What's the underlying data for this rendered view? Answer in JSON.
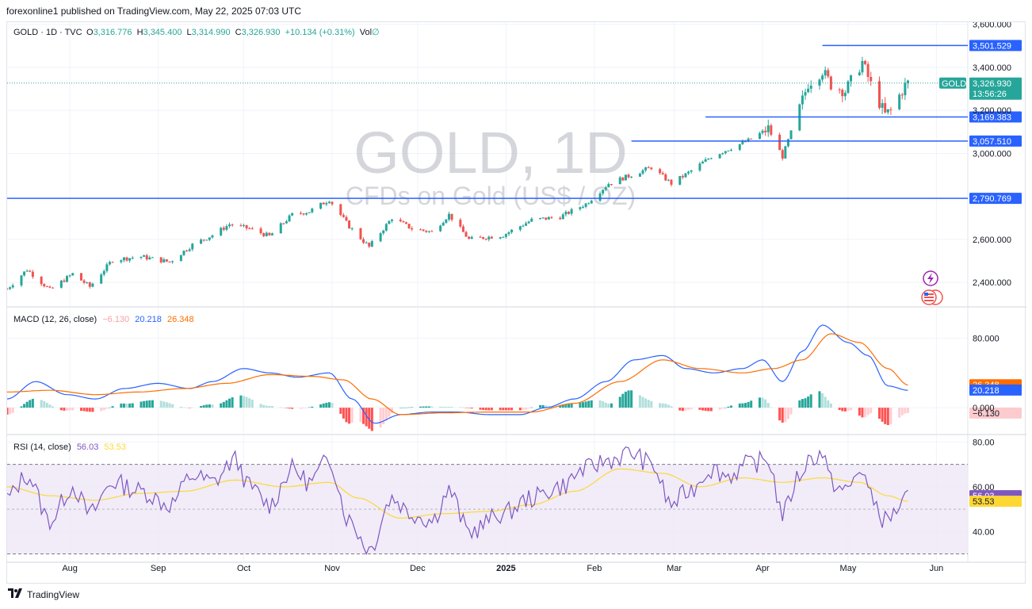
{
  "header": {
    "published_line": "forexonline1 published on TradingView.com, May 22, 2025 07:03 UTC"
  },
  "footer": {
    "logo_icon": "tradingview-logo-icon",
    "brand": "TradingView"
  },
  "colors": {
    "up": "#26a69a",
    "down": "#ef5350",
    "hline": "#2962ff",
    "macd_line": "#2962ff",
    "signal_line": "#ff6d00",
    "rsi_line": "#7e57c2",
    "rsi_ma": "#fdd835",
    "rsi_band": "#ede7f6"
  },
  "chart_data": [
    {
      "type": "candlestick",
      "symbol_label": "GOLD · 1D · TVC",
      "ohlc_legend": {
        "o_label": "O",
        "o": "3,316.776",
        "h_label": "H",
        "h": "3,345.400",
        "l_label": "L",
        "l": "3,314.990",
        "c_label": "C",
        "c": "3,326.930",
        "change": "+10.134 (+0.31%)",
        "vol_label": "Vol",
        "vol": "∅"
      },
      "watermark": {
        "title": "GOLD, 1D",
        "subtitle": "CFDs on Gold (US$ / OZ)"
      },
      "y_range": [
        2290,
        3610
      ],
      "y_ticks": [
        "3,600.000",
        "3,400.000",
        "3,200.000",
        "3,000.000",
        "2,600.000",
        "2,400.000"
      ],
      "y_tick_values": [
        3600,
        3400,
        3200,
        3000,
        2600,
        2400
      ],
      "x_ticks": [
        "Aug",
        "Sep",
        "Oct",
        "Nov",
        "Dec",
        "2025",
        "Feb",
        "Mar",
        "Apr",
        "May",
        "Jun"
      ],
      "x_tick_dates": [
        "2024-08-01",
        "2024-09-01",
        "2024-10-01",
        "2024-11-01",
        "2024-12-01",
        "2025-01-01",
        "2025-02-01",
        "2025-03-01",
        "2025-04-01",
        "2025-05-01",
        "2025-06-01"
      ],
      "date_range": [
        "2024-07-10",
        "2025-06-12"
      ],
      "horizontal_lines": [
        {
          "value": 3501.529,
          "label": "3,501.529",
          "start_date": "2025-04-22"
        },
        {
          "value": 3169.383,
          "label": "3,169.383",
          "start_date": "2025-03-12"
        },
        {
          "value": 3057.51,
          "label": "3,057.510",
          "start_date": "2025-02-14"
        },
        {
          "value": 2790.769,
          "label": "2,790.769",
          "start_date": "2024-07-10"
        }
      ],
      "last_price": {
        "symbol_badge": "GOLD",
        "value": 3326.93,
        "label": "3,326.930",
        "countdown": "13:56:26"
      },
      "series": [
        {
          "name": "GOLD",
          "points": [
            [
              "2024-07-10",
              2370
            ],
            [
              "2024-07-17",
              2460
            ],
            [
              "2024-07-25",
              2365
            ],
            [
              "2024-08-02",
              2440
            ],
            [
              "2024-08-08",
              2380
            ],
            [
              "2024-08-16",
              2505
            ],
            [
              "2024-08-26",
              2520
            ],
            [
              "2024-09-05",
              2495
            ],
            [
              "2024-09-13",
              2575
            ],
            [
              "2024-09-20",
              2620
            ],
            [
              "2024-09-26",
              2670
            ],
            [
              "2024-10-03",
              2650
            ],
            [
              "2024-10-10",
              2615
            ],
            [
              "2024-10-18",
              2715
            ],
            [
              "2024-10-24",
              2730
            ],
            [
              "2024-10-31",
              2785
            ],
            [
              "2024-11-07",
              2660
            ],
            [
              "2024-11-14",
              2565
            ],
            [
              "2024-11-22",
              2700
            ],
            [
              "2024-11-29",
              2650
            ],
            [
              "2024-12-06",
              2635
            ],
            [
              "2024-12-12",
              2715
            ],
            [
              "2024-12-19",
              2600
            ],
            [
              "2024-12-31",
              2620
            ],
            [
              "2025-01-10",
              2690
            ],
            [
              "2025-01-20",
              2705
            ],
            [
              "2025-01-29",
              2765
            ],
            [
              "2025-02-06",
              2860
            ],
            [
              "2025-02-14",
              2900
            ],
            [
              "2025-02-21",
              2935
            ],
            [
              "2025-02-28",
              2860
            ],
            [
              "2025-03-06",
              2910
            ],
            [
              "2025-03-14",
              2985
            ],
            [
              "2025-03-20",
              3020
            ],
            [
              "2025-03-27",
              3060
            ],
            [
              "2025-04-03",
              3115
            ],
            [
              "2025-04-08",
              2985
            ],
            [
              "2025-04-14",
              3210
            ],
            [
              "2025-04-17",
              3325
            ],
            [
              "2025-04-22",
              3385
            ],
            [
              "2025-04-25",
              3320
            ],
            [
              "2025-04-30",
              3290
            ],
            [
              "2025-05-06",
              3425
            ],
            [
              "2025-05-09",
              3320
            ],
            [
              "2025-05-14",
              3180
            ],
            [
              "2025-05-16",
              3200
            ],
            [
              "2025-05-21",
              3315
            ],
            [
              "2025-05-22",
              3327
            ]
          ]
        }
      ]
    },
    {
      "type": "line",
      "indicator": "MACD",
      "title": "MACD (12, 26, close)",
      "values_text": [
        "−6.130",
        "20.218",
        "26.348"
      ],
      "y_range": [
        -30,
        115
      ],
      "y_ticks": [
        "80.000",
        "0.000"
      ],
      "y_tick_values": [
        80,
        0
      ],
      "last_labels": [
        {
          "label": "26.348",
          "value": 26.348,
          "color": "#ff6d00"
        },
        {
          "label": "20.218",
          "value": 20.218,
          "color": "#2962ff"
        },
        {
          "label": "−6.130",
          "value": -6.13,
          "color": "#fccbcd"
        }
      ],
      "series": [
        {
          "name": "MACD",
          "points": [
            [
              "2024-07-10",
              10
            ],
            [
              "2024-07-20",
              30
            ],
            [
              "2024-07-31",
              15
            ],
            [
              "2024-08-10",
              10
            ],
            [
              "2024-08-20",
              22
            ],
            [
              "2024-09-01",
              28
            ],
            [
              "2024-09-12",
              22
            ],
            [
              "2024-09-20",
              30
            ],
            [
              "2024-10-01",
              45
            ],
            [
              "2024-10-10",
              40
            ],
            [
              "2024-10-20",
              35
            ],
            [
              "2024-10-31",
              40
            ],
            [
              "2024-11-08",
              10
            ],
            [
              "2024-11-16",
              -18
            ],
            [
              "2024-11-25",
              -8
            ],
            [
              "2024-12-06",
              -5
            ],
            [
              "2024-12-15",
              -5
            ],
            [
              "2024-12-26",
              -8
            ],
            [
              "2025-01-06",
              -8
            ],
            [
              "2025-01-15",
              0
            ],
            [
              "2025-01-25",
              10
            ],
            [
              "2025-02-05",
              30
            ],
            [
              "2025-02-15",
              55
            ],
            [
              "2025-02-25",
              60
            ],
            [
              "2025-03-05",
              45
            ],
            [
              "2025-03-15",
              40
            ],
            [
              "2025-03-25",
              45
            ],
            [
              "2025-04-01",
              55
            ],
            [
              "2025-04-08",
              30
            ],
            [
              "2025-04-15",
              65
            ],
            [
              "2025-04-22",
              95
            ],
            [
              "2025-05-01",
              75
            ],
            [
              "2025-05-08",
              60
            ],
            [
              "2025-05-15",
              25
            ],
            [
              "2025-05-22",
              20
            ]
          ]
        },
        {
          "name": "Signal",
          "points": [
            [
              "2024-07-10",
              18
            ],
            [
              "2024-07-25",
              20
            ],
            [
              "2024-08-10",
              15
            ],
            [
              "2024-08-25",
              18
            ],
            [
              "2024-09-10",
              22
            ],
            [
              "2024-09-25",
              28
            ],
            [
              "2024-10-10",
              38
            ],
            [
              "2024-10-25",
              36
            ],
            [
              "2024-11-05",
              32
            ],
            [
              "2024-11-15",
              10
            ],
            [
              "2024-11-25",
              -8
            ],
            [
              "2024-12-10",
              -6
            ],
            [
              "2024-12-26",
              -5
            ],
            [
              "2025-01-10",
              -5
            ],
            [
              "2025-01-25",
              5
            ],
            [
              "2025-02-10",
              30
            ],
            [
              "2025-02-25",
              55
            ],
            [
              "2025-03-10",
              45
            ],
            [
              "2025-03-25",
              40
            ],
            [
              "2025-04-05",
              45
            ],
            [
              "2025-04-15",
              55
            ],
            [
              "2025-04-25",
              85
            ],
            [
              "2025-05-05",
              75
            ],
            [
              "2025-05-15",
              45
            ],
            [
              "2025-05-22",
              26
            ]
          ]
        }
      ]
    },
    {
      "type": "line",
      "indicator": "RSI",
      "title": "RSI (14, close)",
      "values_text": [
        "56.03",
        "53.53"
      ],
      "y_range": [
        27,
        83
      ],
      "y_ticks": [
        "80.00",
        "60.00",
        "40.00"
      ],
      "y_tick_values": [
        80,
        60,
        40
      ],
      "band": [
        30,
        70
      ],
      "mid": 50,
      "last_labels": [
        {
          "label": "56.03",
          "value": 56.03,
          "color": "#7e57c2"
        },
        {
          "label": "53.53",
          "value": 53.53,
          "color": "#fdd835"
        }
      ],
      "series": [
        {
          "name": "RSI",
          "points": [
            [
              "2024-07-10",
              55
            ],
            [
              "2024-07-17",
              65
            ],
            [
              "2024-07-25",
              45
            ],
            [
              "2024-08-02",
              60
            ],
            [
              "2024-08-08",
              48
            ],
            [
              "2024-08-16",
              62
            ],
            [
              "2024-08-26",
              58
            ],
            [
              "2024-09-05",
              52
            ],
            [
              "2024-09-13",
              65
            ],
            [
              "2024-09-20",
              62
            ],
            [
              "2024-09-28",
              72
            ],
            [
              "2024-10-03",
              60
            ],
            [
              "2024-10-10",
              52
            ],
            [
              "2024-10-18",
              68
            ],
            [
              "2024-10-24",
              62
            ],
            [
              "2024-10-31",
              72
            ],
            [
              "2024-11-07",
              45
            ],
            [
              "2024-11-14",
              32
            ],
            [
              "2024-11-22",
              55
            ],
            [
              "2024-11-29",
              48
            ],
            [
              "2024-12-06",
              45
            ],
            [
              "2024-12-12",
              58
            ],
            [
              "2024-12-19",
              40
            ],
            [
              "2024-12-31",
              48
            ],
            [
              "2025-01-10",
              55
            ],
            [
              "2025-01-20",
              60
            ],
            [
              "2025-01-29",
              68
            ],
            [
              "2025-02-06",
              72
            ],
            [
              "2025-02-14",
              75
            ],
            [
              "2025-02-21",
              70
            ],
            [
              "2025-02-28",
              52
            ],
            [
              "2025-03-06",
              58
            ],
            [
              "2025-03-14",
              68
            ],
            [
              "2025-03-20",
              65
            ],
            [
              "2025-03-27",
              70
            ],
            [
              "2025-04-03",
              72
            ],
            [
              "2025-04-08",
              48
            ],
            [
              "2025-04-14",
              65
            ],
            [
              "2025-04-17",
              72
            ],
            [
              "2025-04-22",
              75
            ],
            [
              "2025-04-25",
              62
            ],
            [
              "2025-04-30",
              58
            ],
            [
              "2025-05-06",
              68
            ],
            [
              "2025-05-09",
              55
            ],
            [
              "2025-05-14",
              45
            ],
            [
              "2025-05-16",
              47
            ],
            [
              "2025-05-21",
              54
            ],
            [
              "2025-05-22",
              56
            ]
          ]
        },
        {
          "name": "RSI-based MA",
          "points": [
            [
              "2024-07-10",
              60
            ],
            [
              "2024-07-25",
              56
            ],
            [
              "2024-08-10",
              54
            ],
            [
              "2024-08-25",
              57
            ],
            [
              "2024-09-10",
              58
            ],
            [
              "2024-09-28",
              63
            ],
            [
              "2024-10-15",
              60
            ],
            [
              "2024-10-31",
              62
            ],
            [
              "2024-11-10",
              55
            ],
            [
              "2024-11-25",
              46
            ],
            [
              "2024-12-10",
              48
            ],
            [
              "2024-12-26",
              49
            ],
            [
              "2025-01-10",
              52
            ],
            [
              "2025-01-25",
              58
            ],
            [
              "2025-02-10",
              68
            ],
            [
              "2025-02-25",
              66
            ],
            [
              "2025-03-10",
              60
            ],
            [
              "2025-03-25",
              64
            ],
            [
              "2025-04-08",
              62
            ],
            [
              "2025-04-22",
              64
            ],
            [
              "2025-05-05",
              62
            ],
            [
              "2025-05-15",
              56
            ],
            [
              "2025-05-22",
              53.5
            ]
          ]
        }
      ]
    }
  ]
}
